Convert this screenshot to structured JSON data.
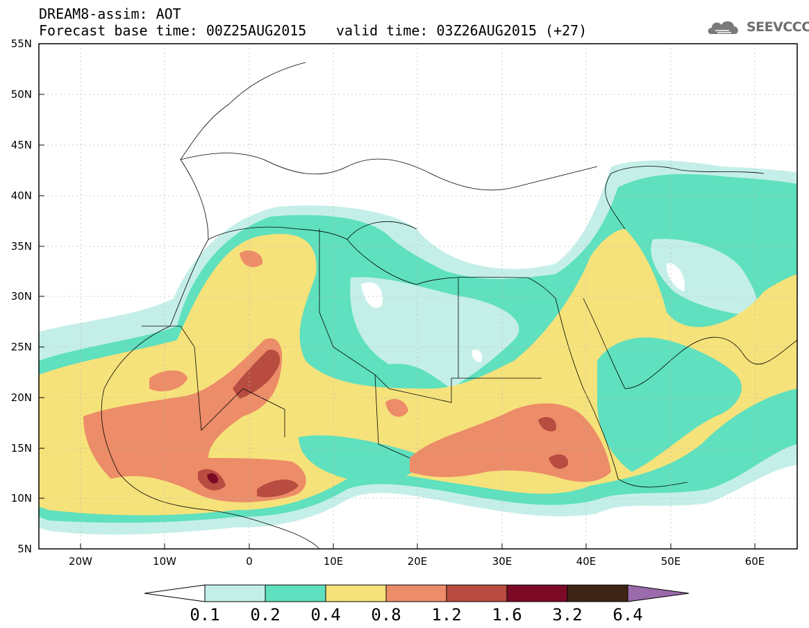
{
  "header": {
    "title": "DREAM8-assim: AOT",
    "base_time": "Forecast base time: 00Z25AUG2015",
    "valid_time": "valid time: 03Z26AUG2015 (+27)",
    "logo_text": "SEEVCCC"
  },
  "map": {
    "lon_range": [
      -25,
      65
    ],
    "lat_range": [
      5,
      55
    ],
    "lat_ticks": [
      "5N",
      "10N",
      "15N",
      "20N",
      "25N",
      "30N",
      "35N",
      "40N",
      "45N",
      "50N",
      "55N"
    ],
    "lon_ticks": [
      "20W",
      "10W",
      "0",
      "10E",
      "20E",
      "30E",
      "40E",
      "50E",
      "60E"
    ],
    "gridlines": true
  },
  "colorbar": {
    "levels": [
      "0.1",
      "0.2",
      "0.4",
      "0.8",
      "1.2",
      "1.6",
      "3.2",
      "6.4"
    ],
    "colors": [
      "#ffffff",
      "#c4efe8",
      "#5fe0be",
      "#f6e27a",
      "#ec8c68",
      "#b84c40",
      "#7c0a26",
      "#3e2414",
      "#9a6aaa"
    ]
  }
}
